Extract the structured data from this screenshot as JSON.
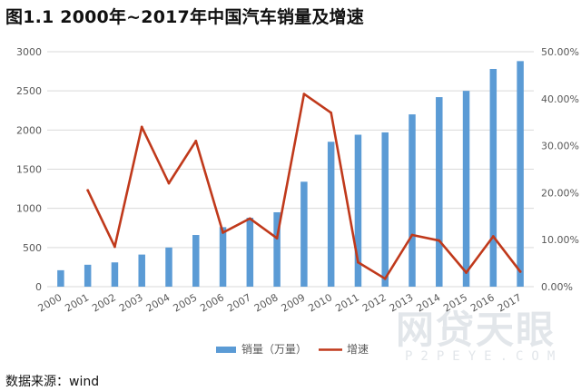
{
  "title": "图1.1  2000年~2017年中国汽车销量及增速",
  "source": "数据来源：wind",
  "watermark": {
    "main": "网贷天眼",
    "sub": "P2PEYE.COM"
  },
  "colors": {
    "bar": "#5b9bd5",
    "line": "#c0391b",
    "grid": "#d9d9d9",
    "axis_text": "#595959"
  },
  "chart_data": {
    "type": "bar",
    "categories": [
      "2000",
      "2001",
      "2002",
      "2003",
      "2004",
      "2005",
      "2006",
      "2007",
      "2008",
      "2009",
      "2010",
      "2011",
      "2012",
      "2013",
      "2014",
      "2015",
      "2016",
      "2017"
    ],
    "series": [
      {
        "name": "销量（万量）",
        "type": "bar",
        "axis": "left",
        "values": [
          210,
          280,
          310,
          410,
          500,
          660,
          760,
          880,
          950,
          1340,
          1850,
          1940,
          1970,
          2200,
          2420,
          2500,
          2780,
          2880
        ]
      },
      {
        "name": "增速",
        "type": "line",
        "axis": "right",
        "values": [
          null,
          0.205,
          0.085,
          0.34,
          0.22,
          0.31,
          0.115,
          0.145,
          0.103,
          0.41,
          0.37,
          0.052,
          0.017,
          0.11,
          0.098,
          0.03,
          0.107,
          0.032
        ]
      }
    ],
    "y_left": {
      "lim": [
        0,
        3000
      ],
      "ticks": [
        0,
        500,
        1000,
        1500,
        2000,
        2500,
        3000
      ]
    },
    "y_right": {
      "lim": [
        0,
        0.5
      ],
      "ticks": [
        "0.00%",
        "10.00%",
        "20.00%",
        "30.00%",
        "40.00%",
        "50.00%"
      ]
    },
    "grid": true,
    "legend": "bottom-center"
  }
}
